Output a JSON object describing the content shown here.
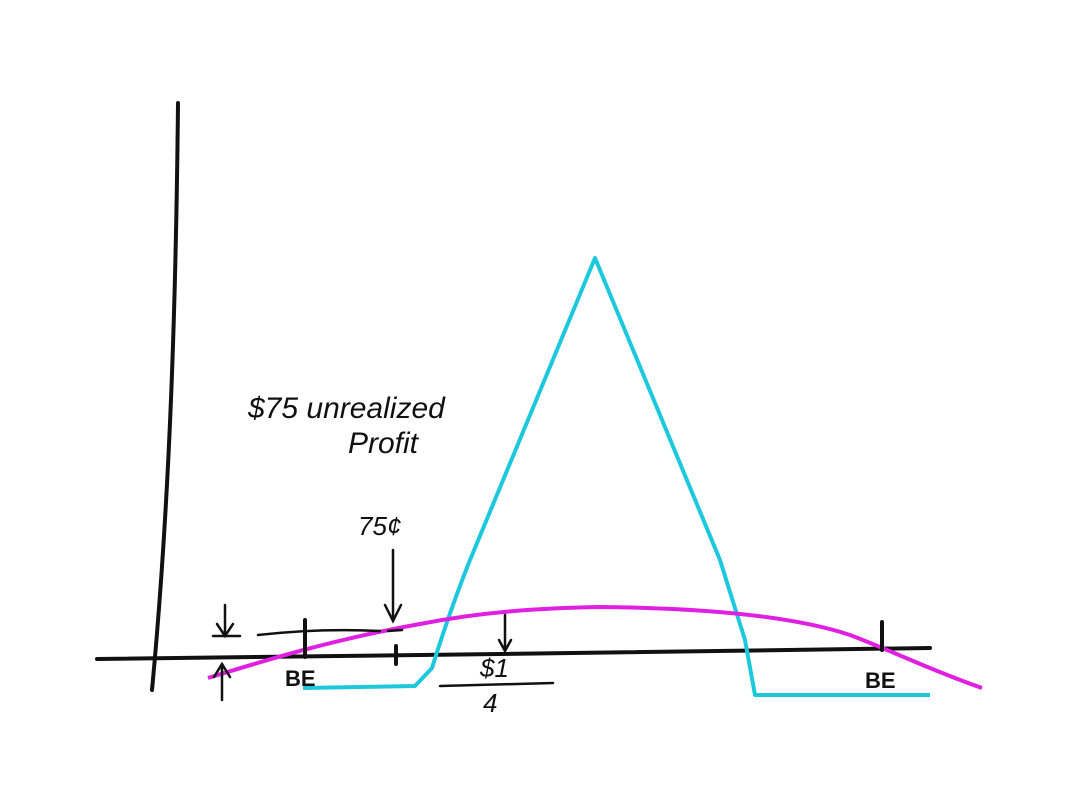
{
  "labels": {
    "annotation_line1": "$75 unrealized",
    "annotation_line2": "Profit",
    "price_marker": "75¢",
    "break_even_left": "BE",
    "break_even_right": "BE",
    "strike_numerator": "$1",
    "strike_denominator": "4"
  }
}
